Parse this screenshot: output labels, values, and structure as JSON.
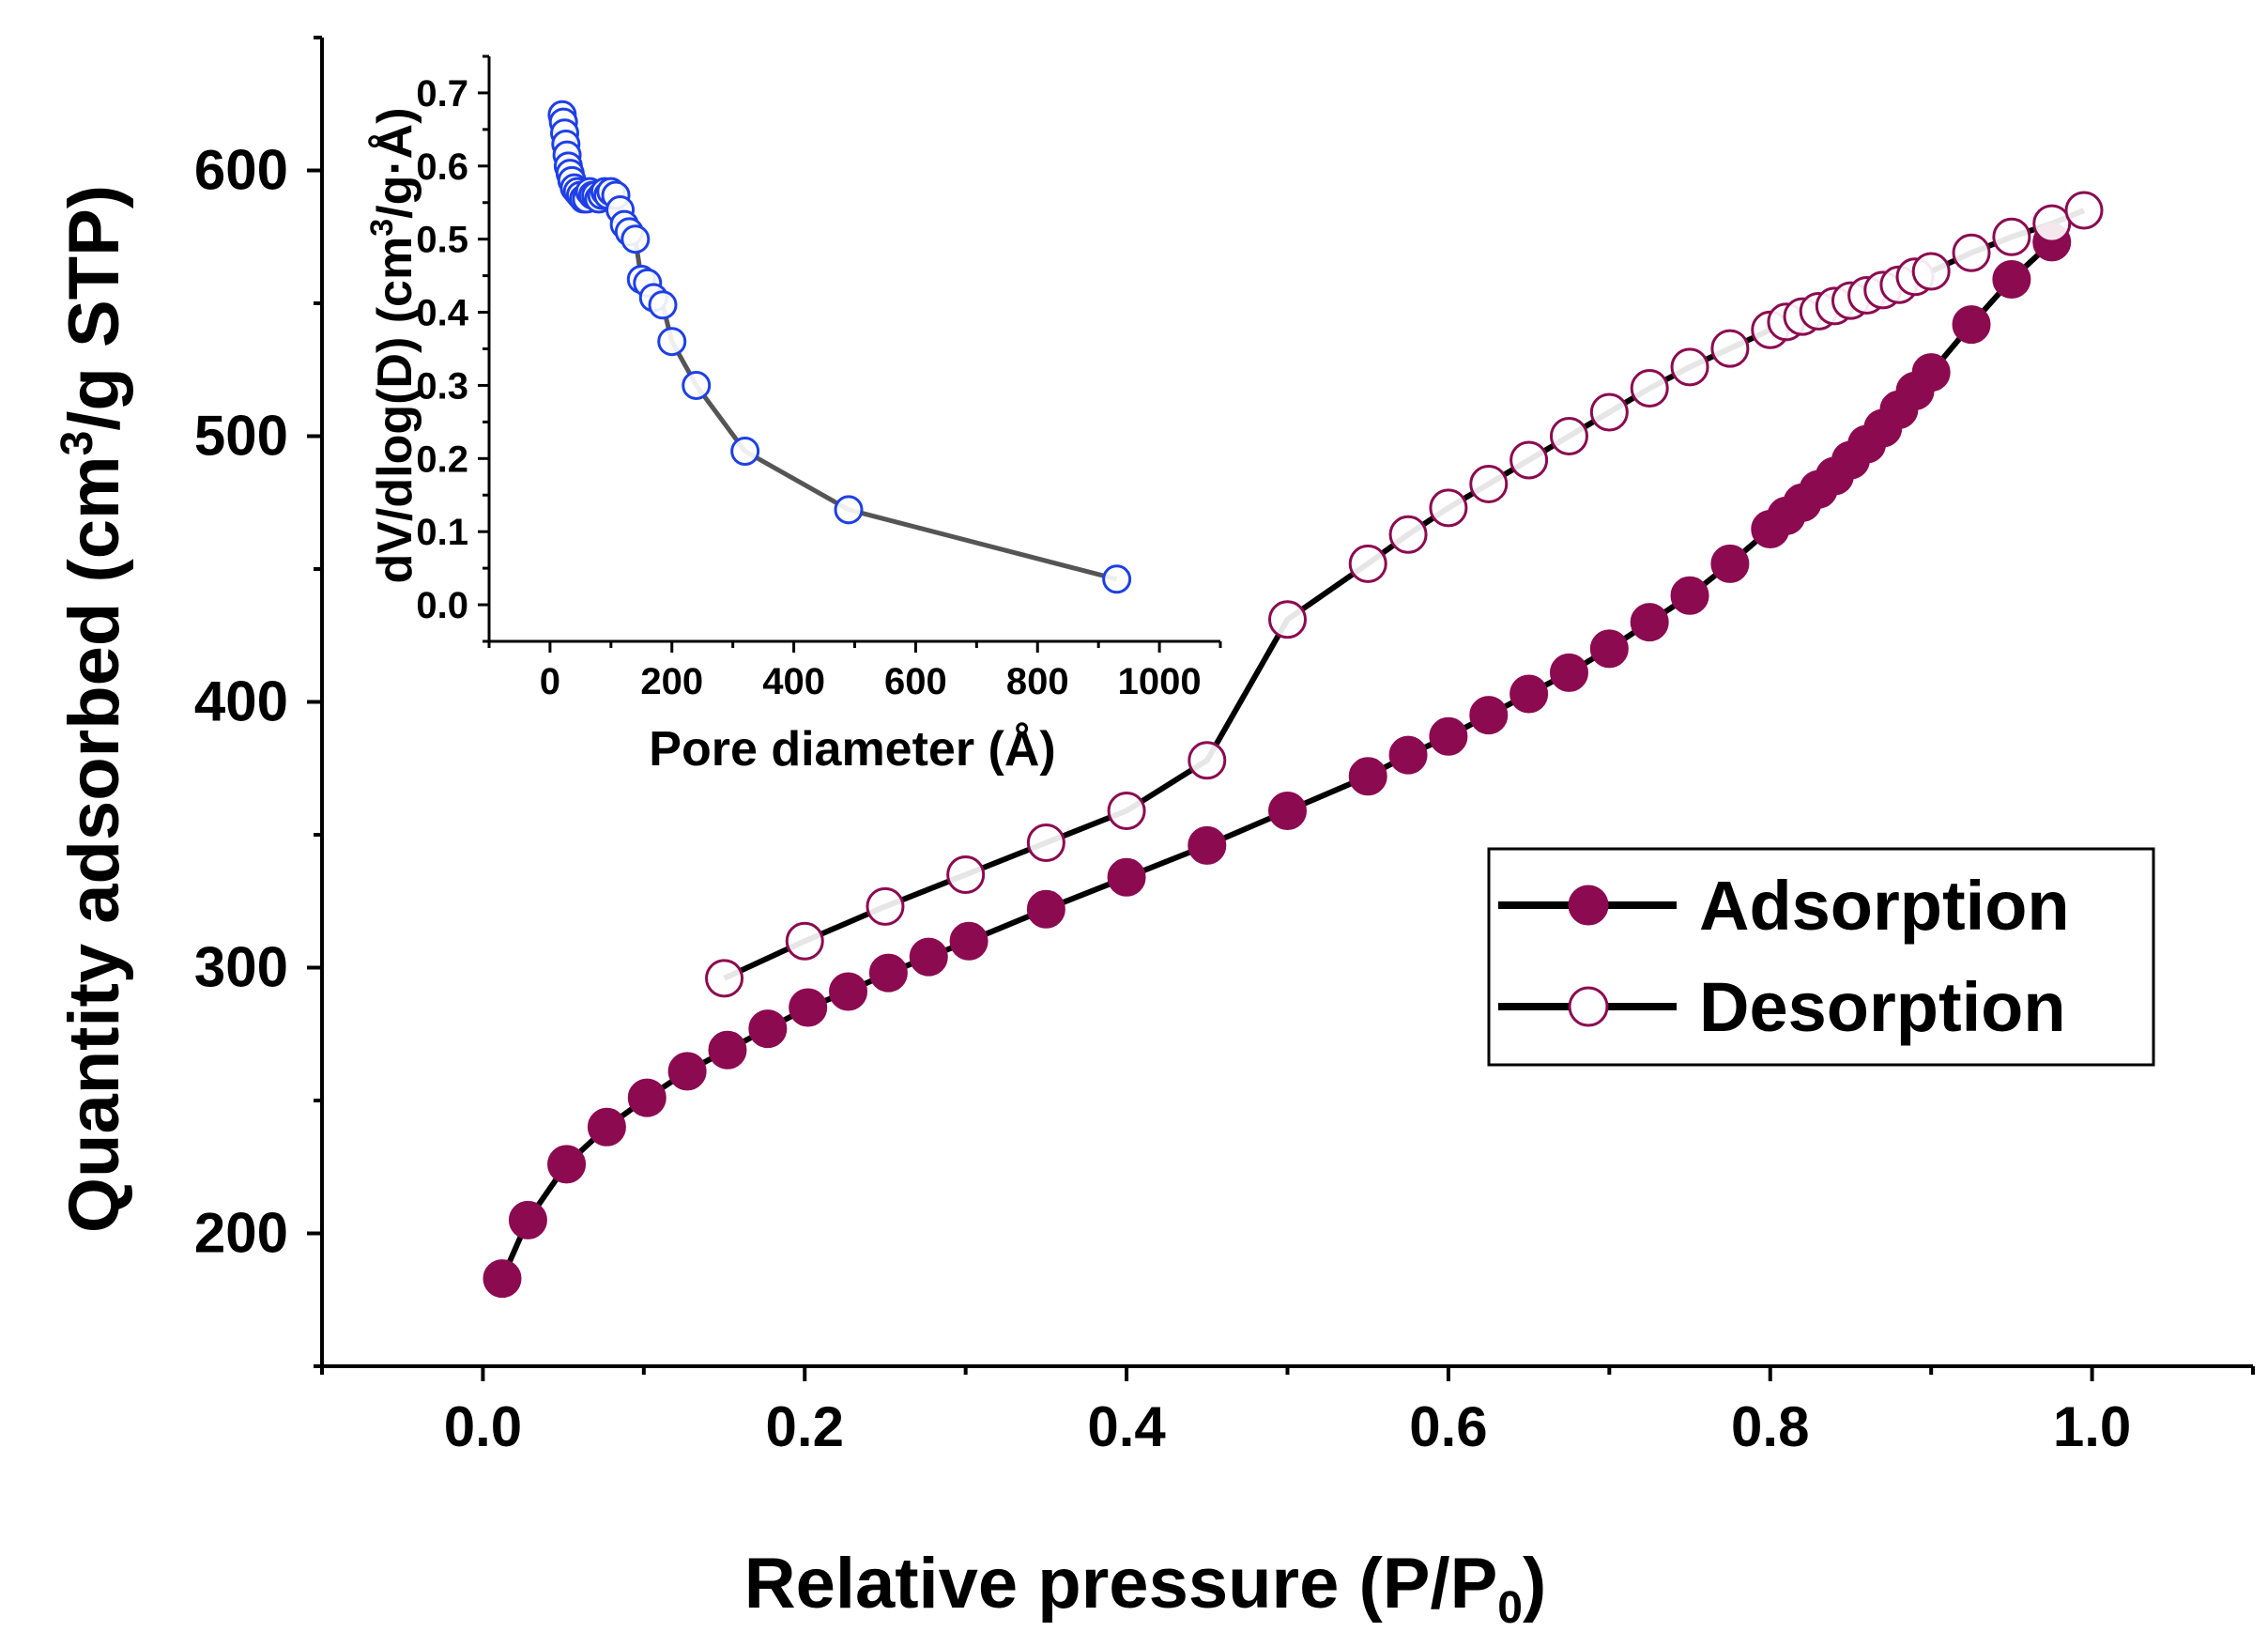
{
  "chart_data": [
    {
      "type": "line",
      "panel": "main",
      "xlabel": "Relative pressure (P/P₀)",
      "xlabel_parts": {
        "main": "Relative pressure (P/P",
        "sub": "0",
        "end": ")"
      },
      "ylabel": "Quantity adsorbed (cm³/g STP)",
      "ylabel_parts": {
        "main": "Quantity adsorbed (cm",
        "sup": "3",
        "end": "/g STP)"
      },
      "xlim": [
        -0.1,
        1.1
      ],
      "ylim": [
        150,
        650
      ],
      "xticks": [
        0.0,
        0.2,
        0.4,
        0.6,
        0.8,
        1.0
      ],
      "xtick_labels": [
        "0.0",
        "0.2",
        "0.4",
        "0.6",
        "0.8",
        "1.0"
      ],
      "yticks": [
        200,
        300,
        400,
        500,
        600
      ],
      "ytick_labels": [
        "200",
        "300",
        "400",
        "500",
        "600"
      ],
      "legend": {
        "placement": "right",
        "entries": [
          "Adsorption",
          "Desorption"
        ]
      },
      "grid": false,
      "series": [
        {
          "name": "Adsorption",
          "marker": "filled-circle",
          "color": "#8B0A50",
          "line_color": "#000000",
          "x": [
            0.012,
            0.028,
            0.052,
            0.077,
            0.102,
            0.127,
            0.152,
            0.177,
            0.202,
            0.227,
            0.252,
            0.277,
            0.302,
            0.35,
            0.4,
            0.45,
            0.5,
            0.55,
            0.575,
            0.6,
            0.625,
            0.65,
            0.675,
            0.7,
            0.725,
            0.75,
            0.775,
            0.8,
            0.81,
            0.82,
            0.83,
            0.84,
            0.85,
            0.86,
            0.87,
            0.88,
            0.89,
            0.9,
            0.925,
            0.95,
            0.975
          ],
          "y": [
            183,
            205,
            226,
            240,
            251,
            261,
            269,
            277,
            285,
            291,
            298,
            304,
            310,
            322,
            334,
            346,
            359,
            372,
            380,
            387,
            395,
            403,
            411,
            420,
            430,
            440,
            452,
            465,
            470,
            475,
            480,
            485,
            491,
            497,
            503,
            510,
            517,
            524,
            542,
            559,
            573
          ]
        },
        {
          "name": "Desorption",
          "marker": "open-circle",
          "color": "#8B0A50",
          "line_color": "#000000",
          "x": [
            0.15,
            0.2,
            0.25,
            0.3,
            0.35,
            0.4,
            0.45,
            0.5,
            0.55,
            0.575,
            0.6,
            0.625,
            0.65,
            0.675,
            0.7,
            0.725,
            0.75,
            0.775,
            0.8,
            0.81,
            0.82,
            0.83,
            0.84,
            0.85,
            0.86,
            0.87,
            0.88,
            0.89,
            0.9,
            0.925,
            0.95,
            0.975,
            0.995
          ],
          "y": [
            296,
            310,
            323,
            335,
            347,
            359,
            378,
            431,
            452,
            463,
            473,
            482,
            491,
            500,
            509,
            518,
            526,
            533,
            540,
            543,
            545,
            547,
            549,
            551,
            553,
            555,
            557,
            560,
            562,
            569,
            575,
            580,
            585
          ]
        }
      ]
    },
    {
      "type": "line",
      "panel": "inset",
      "xlabel": "Pore diameter (Å)",
      "ylabel": "dV/dlog(D) (cm³/g·Å)",
      "ylabel_parts": {
        "main": "dV/dlog(D) (cm",
        "sup": "3",
        "end": "/g·Å)"
      },
      "xlim": [
        -100,
        1100
      ],
      "ylim": [
        -0.05,
        0.75
      ],
      "xticks": [
        0,
        200,
        400,
        600,
        800,
        1000
      ],
      "xtick_labels": [
        "0",
        "200",
        "400",
        "600",
        "800",
        "1000"
      ],
      "yticks": [
        0.0,
        0.1,
        0.2,
        0.3,
        0.4,
        0.5,
        0.6,
        0.7
      ],
      "ytick_labels": [
        "0.0",
        "0.1",
        "0.2",
        "0.3",
        "0.4",
        "0.5",
        "0.6",
        "0.7"
      ],
      "grid": false,
      "series": [
        {
          "marker": "open-circle",
          "color": "#1E3FE6",
          "line_color": "#555555",
          "x": [
            20,
            22,
            24,
            26,
            28,
            30,
            33,
            36,
            40,
            45,
            50,
            55,
            60,
            65,
            70,
            75,
            80,
            85,
            90,
            95,
            100,
            108,
            115,
            122,
            130,
            140,
            150,
            160,
            170,
            185,
            200,
            240,
            320,
            490,
            930
          ],
          "y": [
            0.67,
            0.66,
            0.645,
            0.63,
            0.615,
            0.6,
            0.59,
            0.58,
            0.57,
            0.565,
            0.56,
            0.555,
            0.555,
            0.565,
            0.56,
            0.56,
            0.555,
            0.56,
            0.565,
            0.56,
            0.565,
            0.56,
            0.54,
            0.52,
            0.51,
            0.5,
            0.445,
            0.44,
            0.42,
            0.41,
            0.36,
            0.3,
            0.21,
            0.13,
            0.035
          ]
        }
      ]
    }
  ]
}
